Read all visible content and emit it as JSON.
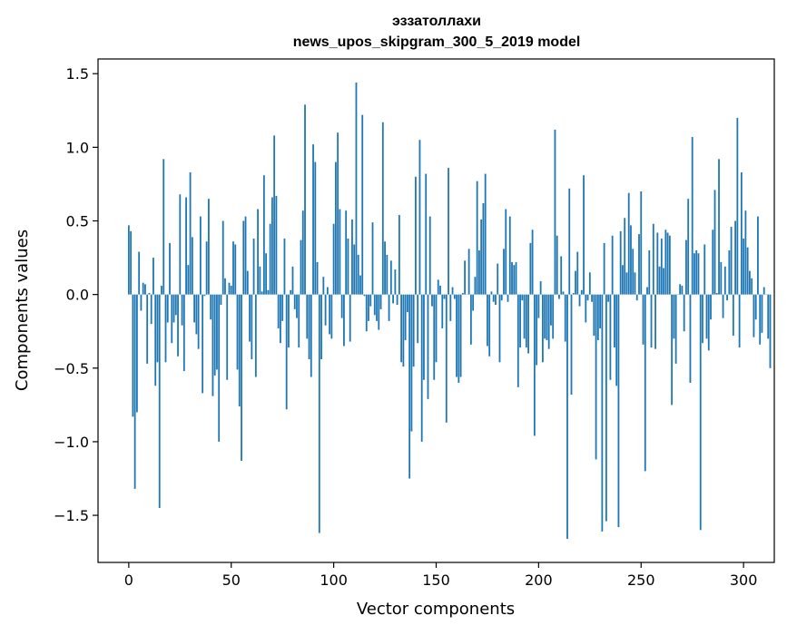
{
  "chart_data": {
    "type": "bar",
    "title": "эззатоллахи",
    "subtitle": "news_upos_skipgram_300_5_2019 model",
    "xlabel": "Vector components",
    "ylabel": "Components values",
    "xlim": [
      -15,
      315
    ],
    "ylim": [
      -1.82,
      1.6
    ],
    "x_ticks": [
      0,
      50,
      100,
      150,
      200,
      250,
      300
    ],
    "y_ticks": [
      -1.5,
      -1.0,
      -0.5,
      0.0,
      0.5,
      1.0,
      1.5
    ],
    "y_tick_labels": [
      "−1.5",
      "−1.0",
      "−0.5",
      "0.0",
      "0.5",
      "1.0",
      "1.5"
    ],
    "x_tick_labels": [
      "0",
      "50",
      "100",
      "150",
      "200",
      "250",
      "300"
    ],
    "grid": false,
    "bar_color": "#1f77b4",
    "values": [
      0.47,
      0.43,
      -0.83,
      -1.32,
      -0.8,
      0.29,
      -0.11,
      0.08,
      0.07,
      -0.47,
      0.01,
      -0.2,
      0.25,
      -0.62,
      -0.46,
      -1.45,
      0.06,
      0.92,
      -0.46,
      -0.19,
      0.35,
      -0.33,
      -0.19,
      -0.14,
      -0.42,
      0.68,
      -0.21,
      -0.52,
      0.66,
      0.2,
      0.83,
      0.39,
      -0.19,
      -0.27,
      -0.37,
      0.53,
      -0.67,
      -0.01,
      0.36,
      0.65,
      -0.17,
      -0.69,
      -0.55,
      -0.51,
      -1.0,
      -0.07,
      0.5,
      0.11,
      -0.58,
      0.08,
      0.06,
      0.36,
      0.34,
      -0.51,
      -0.76,
      -1.13,
      0.5,
      0.53,
      0.16,
      -0.32,
      -0.44,
      0.38,
      -0.56,
      0.58,
      0.19,
      0.02,
      0.81,
      0.28,
      0.03,
      0.48,
      0.66,
      1.08,
      0.67,
      -0.23,
      -0.33,
      -0.18,
      0.38,
      -0.78,
      -0.36,
      0.03,
      0.19,
      -0.1,
      -0.16,
      -0.36,
      0.37,
      0.57,
      1.29,
      -0.3,
      -0.44,
      -0.56,
      1.02,
      0.9,
      0.22,
      -1.62,
      -0.44,
      0.12,
      -0.21,
      0.05,
      -0.27,
      -0.3,
      0.48,
      0.9,
      1.1,
      0.58,
      -0.16,
      -0.35,
      0.57,
      0.38,
      -0.32,
      0.51,
      0.34,
      1.44,
      0.27,
      0.13,
      1.22,
      -0.01,
      -0.25,
      -0.18,
      -0.08,
      0.49,
      -0.14,
      -0.18,
      -0.24,
      -0.1,
      1.17,
      0.36,
      0.27,
      -0.18,
      0.23,
      -0.06,
      0.17,
      -0.07,
      0.54,
      -0.46,
      -0.49,
      -0.31,
      -0.12,
      -1.25,
      -0.93,
      -0.49,
      0.8,
      -0.33,
      1.05,
      -1.0,
      -0.58,
      0.82,
      -0.71,
      0.53,
      -0.08,
      -0.58,
      -0.46,
      0.1,
      0.06,
      -0.23,
      -0.03,
      -0.87,
      0.86,
      -0.18,
      0.05,
      -0.03,
      -0.56,
      -0.6,
      -0.56,
      0.01,
      0.23,
      0.0,
      0.31,
      -0.34,
      -0.11,
      0.12,
      0.77,
      0.3,
      0.51,
      0.62,
      0.82,
      -0.35,
      -0.42,
      0.02,
      -0.05,
      -0.07,
      0.21,
      -0.46,
      -0.04,
      0.31,
      0.58,
      -0.05,
      0.53,
      0.22,
      0.2,
      0.22,
      -0.63,
      -0.36,
      -0.04,
      -0.3,
      -0.36,
      -0.4,
      0.35,
      0.44,
      -0.96,
      -0.48,
      -0.16,
      0.09,
      -0.46,
      -0.3,
      -0.31,
      -0.37,
      -0.21,
      -0.3,
      1.12,
      0.4,
      -0.03,
      0.26,
      0.02,
      -0.32,
      -1.66,
      0.72,
      -0.68,
      0.01,
      0.16,
      0.29,
      -0.08,
      0.03,
      0.81,
      -0.19,
      -0.04,
      0.15,
      -0.05,
      -0.28,
      -1.12,
      -0.31,
      -0.23,
      -1.61,
      0.35,
      -1.54,
      -0.05,
      -0.58,
      0.4,
      -0.36,
      -0.62,
      -1.58,
      0.43,
      0.2,
      0.52,
      0.15,
      0.69,
      0.47,
      0.31,
      0.15,
      -0.04,
      0.41,
      0.7,
      -0.34,
      -1.2,
      0.05,
      0.3,
      -0.36,
      0.48,
      -0.37,
      0.42,
      0.19,
      0.38,
      0.18,
      0.44,
      0.42,
      0.4,
      -0.75,
      -0.3,
      -0.47,
      0.0,
      0.07,
      0.06,
      -0.25,
      0.37,
      0.65,
      -0.6,
      1.07,
      0.28,
      0.3,
      0.28,
      -1.6,
      -0.33,
      0.34,
      -0.3,
      -0.38,
      -0.17,
      0.44,
      0.71,
      0.01,
      0.92,
      0.22,
      -0.16,
      0.19,
      -0.04,
      0.3,
      0.46,
      -0.28,
      0.5,
      1.2,
      -0.36,
      0.83,
      0.38,
      0.57,
      0.32,
      0.16,
      0.11,
      -0.29,
      -0.17,
      0.53,
      -0.34,
      -0.26,
      0.05,
      0.0,
      -0.3,
      -0.5
    ]
  }
}
